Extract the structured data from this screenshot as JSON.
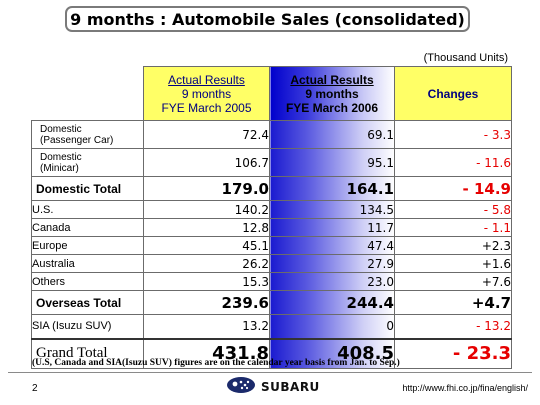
{
  "title": "9 months : Automobile Sales (consolidated)",
  "units_note": "(Thousand Units)",
  "columns": {
    "col2005": {
      "line1": "Actual Results",
      "line2": "9 months",
      "line3": "FYE March 2005"
    },
    "col2006": {
      "line1": "Actual Results",
      "line2": "9 months",
      "line3": "FYE March 2006"
    },
    "changes": "Changes"
  },
  "rows": {
    "dom_passenger": {
      "label1": "Domestic",
      "label2": "(Passenger Car)",
      "fy2005": "72.4",
      "fy2006": "69.1",
      "change": "- 3.3"
    },
    "dom_minicar": {
      "label1": "Domestic",
      "label2": "(Minicar)",
      "fy2005": "106.7",
      "fy2006": "95.1",
      "change": "- 11.6"
    },
    "dom_total": {
      "label": "Domestic Total",
      "fy2005": "179.0",
      "fy2006": "164.1",
      "change": "- 14.9"
    },
    "us": {
      "label": "U.S.",
      "fy2005": "140.2",
      "fy2006": "134.5",
      "change": "- 5.8"
    },
    "canada": {
      "label": "Canada",
      "fy2005": "12.8",
      "fy2006": "11.7",
      "change": "- 1.1"
    },
    "europe": {
      "label": "Europe",
      "fy2005": "45.1",
      "fy2006": "47.4",
      "change": "+2.3"
    },
    "australia": {
      "label": "Australia",
      "fy2005": "26.2",
      "fy2006": "27.9",
      "change": "+1.6"
    },
    "others": {
      "label": "Others",
      "fy2005": "15.3",
      "fy2006": "23.0",
      "change": "+7.6"
    },
    "overseas_total": {
      "label": "Overseas Total",
      "fy2005": "239.6",
      "fy2006": "244.4",
      "change": "+4.7"
    },
    "sia": {
      "label": "SIA (Isuzu SUV)",
      "fy2005": "13.2",
      "fy2006": "0",
      "change": "- 13.2"
    },
    "grand_total": {
      "label": "Grand Total",
      "fy2005": "431.8",
      "fy2006": "408.5",
      "change": "- 23.3"
    }
  },
  "footnote": "(U.S, Canada and SIA(Isuzu SUV) figures are on the calendar year basis from Jan. to Sep.)",
  "footer": {
    "page_number": "2",
    "logo_text": "SUBARU",
    "url": "http://www.fhi.co.jp/fina/english/"
  },
  "colors": {
    "header_yellow": "#ffff66",
    "header_text_navy": "#000080",
    "negative_red": "#e60000",
    "gradient_blue": "#0000cc"
  },
  "icons": [
    "subaru-pleiades-logo-icon"
  ]
}
